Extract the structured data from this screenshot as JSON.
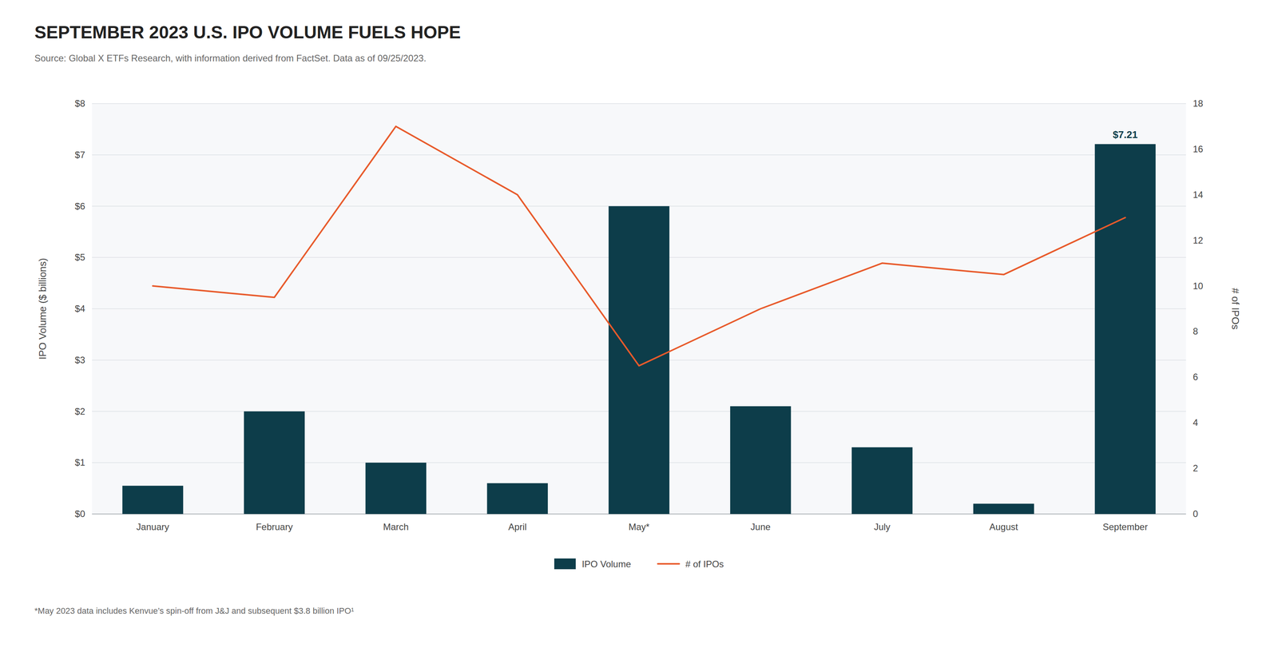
{
  "chart_data": {
    "type": "bar",
    "title": "SEPTEMBER 2023 U.S. IPO VOLUME FUELS HOPE",
    "source": "Source: Global X ETFs Research, with information derived from FactSet. Data as of 09/25/2023.",
    "footnote": "*May 2023 data includes Kenvue’s spin-off from J&J and subsequent $3.8 billion IPO¹",
    "categories": [
      "January",
      "February",
      "March",
      "April",
      "May*",
      "June",
      "July",
      "August",
      "September"
    ],
    "series": [
      {
        "name": "IPO Volume",
        "type": "bar",
        "color": "#0d3d4a",
        "values": [
          0.55,
          2.0,
          1.0,
          0.6,
          6.0,
          2.1,
          1.3,
          0.2,
          7.21
        ]
      },
      {
        "name": "# of IPOs",
        "type": "line",
        "color": "#e85a2b",
        "axis": "y2",
        "values": [
          10,
          9.5,
          17,
          14,
          6.5,
          9,
          11,
          10.5,
          13
        ]
      }
    ],
    "ylabel": "IPO Volume ($ billions)",
    "y2label": "# of IPOs",
    "ylim": [
      0,
      8
    ],
    "yticks": [
      {
        "value": 0,
        "label": "$0"
      },
      {
        "value": 1,
        "label": "$1"
      },
      {
        "value": 2,
        "label": "$2"
      },
      {
        "value": 3,
        "label": "$3"
      },
      {
        "value": 4,
        "label": "$4"
      },
      {
        "value": 5,
        "label": "$5"
      },
      {
        "value": 6,
        "label": "$6"
      },
      {
        "value": 7,
        "label": "$7"
      },
      {
        "value": 8,
        "label": "$8"
      }
    ],
    "y2lim": [
      0,
      18
    ],
    "y2ticks": [
      0,
      2,
      4,
      6,
      8,
      10,
      12,
      14,
      16,
      18
    ],
    "grid": true,
    "legend": "bottom",
    "annotations": [
      {
        "text": "$7.21",
        "x": "September",
        "y": 7.21
      }
    ]
  }
}
